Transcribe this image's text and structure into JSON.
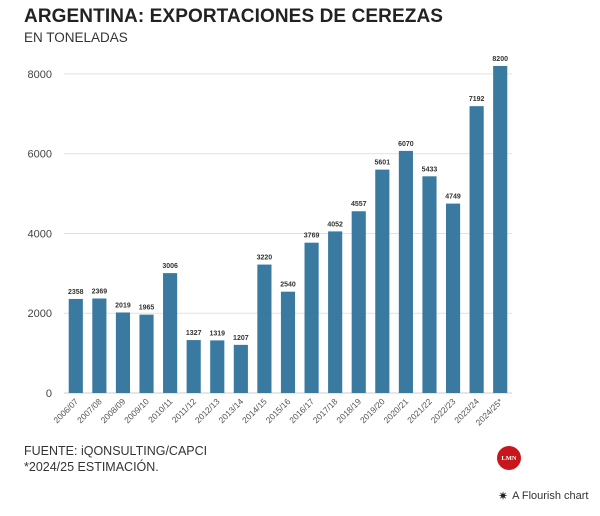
{
  "header": {
    "title": "ARGENTINA: EXPORTACIONES DE CEREZAS",
    "subtitle": "EN TONELADAS"
  },
  "footer": {
    "source": "FUENTE: iQONSULTING/CAPCI",
    "note": "*2024/25 ESTIMACIÓN.",
    "logo_text": "LMN",
    "credit": "A Flourish chart",
    "credit_icon": "flourish-star-icon"
  },
  "colors": {
    "bar": "#3a7aa0",
    "grid": "#e2e2e2",
    "axis": "#cccccc",
    "logo": "#c8161d"
  },
  "chart_data": {
    "type": "bar",
    "title": "ARGENTINA: EXPORTACIONES DE CEREZAS",
    "subtitle": "EN TONELADAS",
    "xlabel": "",
    "ylabel": "",
    "categories": [
      "2006/07",
      "2007/08",
      "2008/09",
      "2009/10",
      "2010/11",
      "2011/12",
      "2012/13",
      "2013/14",
      "2014/15",
      "2015/16",
      "2016/17",
      "2017/18",
      "2018/19",
      "2019/20",
      "2020/21",
      "2021/22",
      "2022/23",
      "2023/24",
      "2024/25*"
    ],
    "values": [
      2358,
      2369,
      2019,
      1965,
      3006,
      1327,
      1319,
      1207,
      3220,
      2540,
      3769,
      4052,
      4557,
      5601,
      6070,
      5433,
      4749,
      7192,
      8200
    ],
    "ylim": [
      0,
      8600
    ],
    "yticks": [
      0,
      2000,
      4000,
      6000,
      8000
    ],
    "grid": true,
    "legend": "none",
    "data_labels": true
  }
}
